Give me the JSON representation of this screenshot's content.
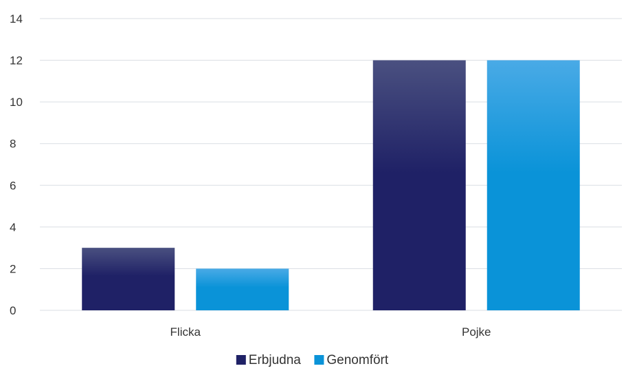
{
  "chart_data": {
    "type": "bar",
    "categories": [
      "Flicka",
      "Pojke"
    ],
    "series": [
      {
        "name": "Erbjudna",
        "values": [
          3,
          12
        ],
        "color": "#1f2166",
        "color_top": "#4a5080"
      },
      {
        "name": "Genomfört",
        "values": [
          2,
          12
        ],
        "color": "#0a93d8",
        "color_top": "#49aae6"
      }
    ],
    "yticks": [
      0,
      2,
      4,
      6,
      8,
      10,
      12,
      14
    ],
    "ylim": [
      0,
      14
    ],
    "title": "",
    "xlabel": "",
    "ylabel": "",
    "grid": true,
    "legend_position": "bottom"
  }
}
